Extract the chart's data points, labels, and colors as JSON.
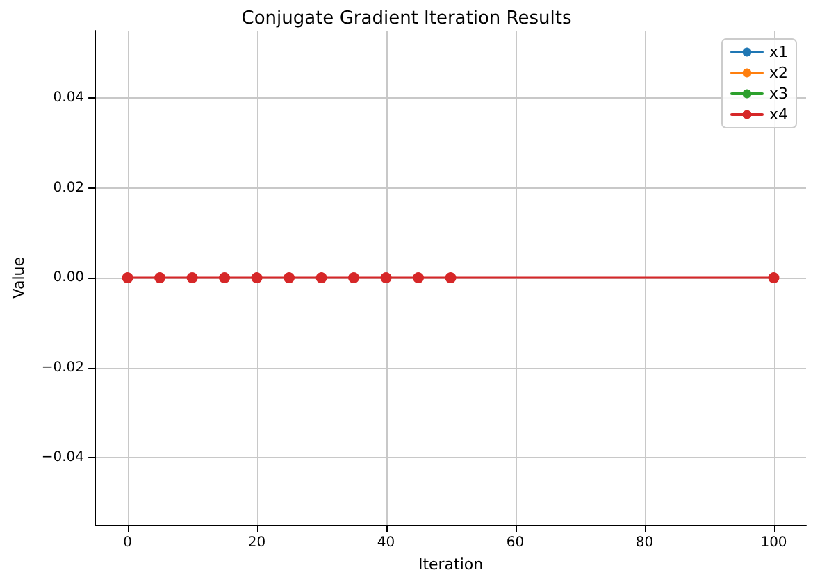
{
  "chart_data": {
    "type": "line",
    "title": "Conjugate Gradient Iteration Results",
    "xlabel": "Iteration",
    "ylabel": "Value",
    "x": [
      0,
      5,
      10,
      15,
      20,
      25,
      30,
      35,
      40,
      45,
      50,
      100
    ],
    "series": [
      {
        "name": "x1",
        "color": "#1f77b4",
        "values": [
          null,
          null,
          null,
          null,
          null,
          null,
          null,
          null,
          null,
          null,
          null,
          null
        ]
      },
      {
        "name": "x2",
        "color": "#ff7f0e",
        "values": [
          null,
          null,
          null,
          null,
          null,
          null,
          null,
          null,
          null,
          null,
          null,
          null
        ]
      },
      {
        "name": "x3",
        "color": "#2ca02c",
        "values": [
          null,
          null,
          null,
          null,
          null,
          null,
          null,
          null,
          null,
          null,
          null,
          null
        ]
      },
      {
        "name": "x4",
        "color": "#d62728",
        "values": [
          0,
          0,
          0,
          0,
          0,
          0,
          0,
          0,
          0,
          0,
          0,
          0
        ]
      }
    ],
    "xlim": [
      -5,
      105
    ],
    "xticks": [
      0,
      20,
      40,
      60,
      80,
      100
    ],
    "ylim": [
      -0.055,
      0.055
    ],
    "yticks": [
      {
        "value": -0.04,
        "label": "−0.04"
      },
      {
        "value": -0.02,
        "label": "−0.02"
      },
      {
        "value": 0,
        "label": "0.00"
      },
      {
        "value": 0.02,
        "label": "0.02"
      },
      {
        "value": 0.04,
        "label": "0.04"
      }
    ],
    "grid": true,
    "legend": "top right",
    "marker": "circle",
    "line_style": "solid"
  }
}
